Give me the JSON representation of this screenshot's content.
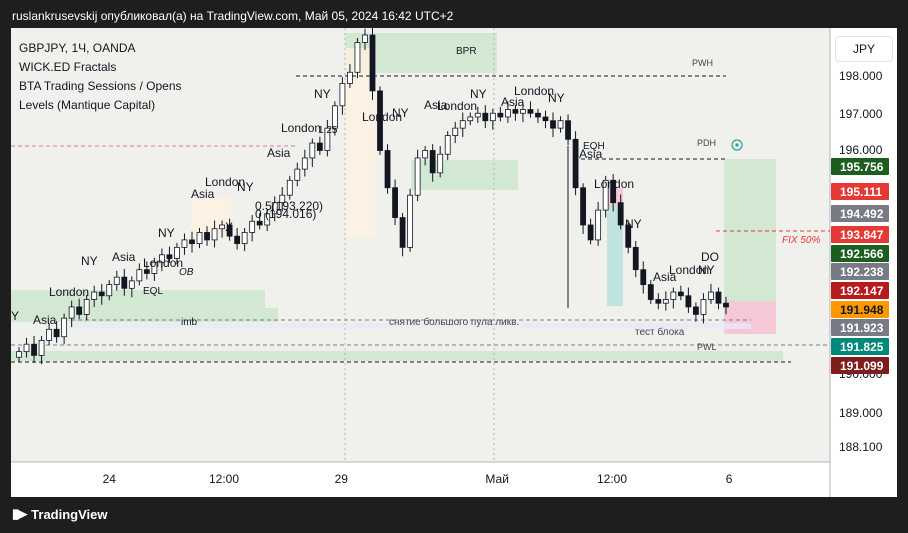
{
  "header": {
    "text": "ruslankrusevskij опубликовал(а) на TradingView.com, Май 05, 2024 16:42 UTC+2"
  },
  "legend": [
    "GBPJPY, 1Ч, OANDA",
    "WICK.ED Fractals",
    "BTA Trading Sessions / Opens",
    "Levels (Mantique Capital)"
  ],
  "currency": "JPY",
  "footer": {
    "brand": "TradingView"
  },
  "colors": {
    "bg": "#f0f0ec",
    "up": "#26a69a",
    "down": "#ef5350",
    "candle": "#131722",
    "green_box": "#c8e6c9",
    "red_box": "#f8bbd0"
  },
  "chart_data": {
    "type": "candlestick",
    "symbol": "GBPJPY",
    "timeframe": "1Ч",
    "ylim": [
      187.7,
      199.3
    ],
    "y_ticks": [
      "198.000",
      "197.000",
      "196.000",
      "190.000",
      "189.000",
      "188.100"
    ],
    "y_tick_values": [
      198.0,
      197.0,
      196.0,
      190.0,
      189.0,
      188.1
    ],
    "x_ticks": [
      "24",
      "12:00",
      "29",
      "Май",
      "12:00",
      "6"
    ],
    "price_labels": [
      {
        "text": "195.756",
        "value": 195.756,
        "color": "#1b5e20"
      },
      {
        "text": "195.111",
        "value": 195.111,
        "color": "#e53935"
      },
      {
        "text": "194.492",
        "value": 194.492,
        "color": "#787b86"
      },
      {
        "text": "193.847",
        "value": 193.847,
        "color": "#e53935"
      },
      {
        "text": "192.566",
        "value": 192.566,
        "color": "#1b5e20"
      },
      {
        "text": "192.238",
        "value": 192.238,
        "color": "#787b86"
      },
      {
        "text": "192.147",
        "value": 192.147,
        "color": "#b71c1c"
      },
      {
        "text": "191.948",
        "value": 191.948,
        "color": "#ff9800"
      },
      {
        "text": "191.923",
        "value": 191.923,
        "color": "#787b86"
      },
      {
        "text": "191.825",
        "value": 191.825,
        "color": "#00897b"
      },
      {
        "text": "191.099",
        "value": 191.099,
        "color": "#7f1d1d"
      }
    ],
    "levels": [
      {
        "label": "PWH",
        "value": 198.0
      },
      {
        "label": "PDH",
        "value": 195.6
      },
      {
        "label": "PWL",
        "value": 190.4
      },
      {
        "label": "FIX 50%",
        "value": 193.7
      }
    ],
    "annotations": [
      "BPR",
      "Asia",
      "London",
      "NY",
      "EQH",
      "EQL",
      "OB",
      "imb",
      "X",
      "DO",
      "снятие большого пула ликв.",
      "тест блока",
      "0.5(193.220)",
      "0 (194.016)",
      "1.25"
    ],
    "series": [
      {
        "name": "",
        "close": [
          190.6,
          190.8,
          190.5,
          190.9,
          191.2,
          191.0,
          191.5,
          191.8,
          191.6,
          192.0,
          192.2,
          192.1,
          192.4,
          192.6,
          192.3,
          192.5,
          192.8,
          192.7,
          193.0,
          193.2,
          193.1,
          193.4,
          193.6,
          193.5,
          193.8,
          193.6,
          193.9,
          194.0,
          193.7,
          193.5,
          193.8,
          194.1,
          194.0,
          194.3,
          194.6,
          194.8,
          195.2,
          195.5,
          195.8,
          196.2,
          196.0,
          196.6,
          197.2,
          197.8,
          198.1,
          198.9,
          199.1,
          197.6,
          196.0,
          195.0,
          194.2,
          193.4,
          194.8,
          195.8,
          196.0,
          195.4,
          195.9,
          196.4,
          196.6,
          196.8,
          196.9,
          197.0,
          196.8,
          197.0,
          196.9,
          197.1,
          197.0,
          197.1,
          197.0,
          196.9,
          196.8,
          196.6,
          196.8,
          196.3,
          195.0,
          194.0,
          193.6,
          194.4,
          195.2,
          194.6,
          194.0,
          193.4,
          192.8,
          192.4,
          192.0,
          191.9,
          192.0,
          192.2,
          192.1,
          191.8,
          191.6,
          192.0,
          192.2,
          191.9,
          191.8
        ]
      }
    ]
  }
}
